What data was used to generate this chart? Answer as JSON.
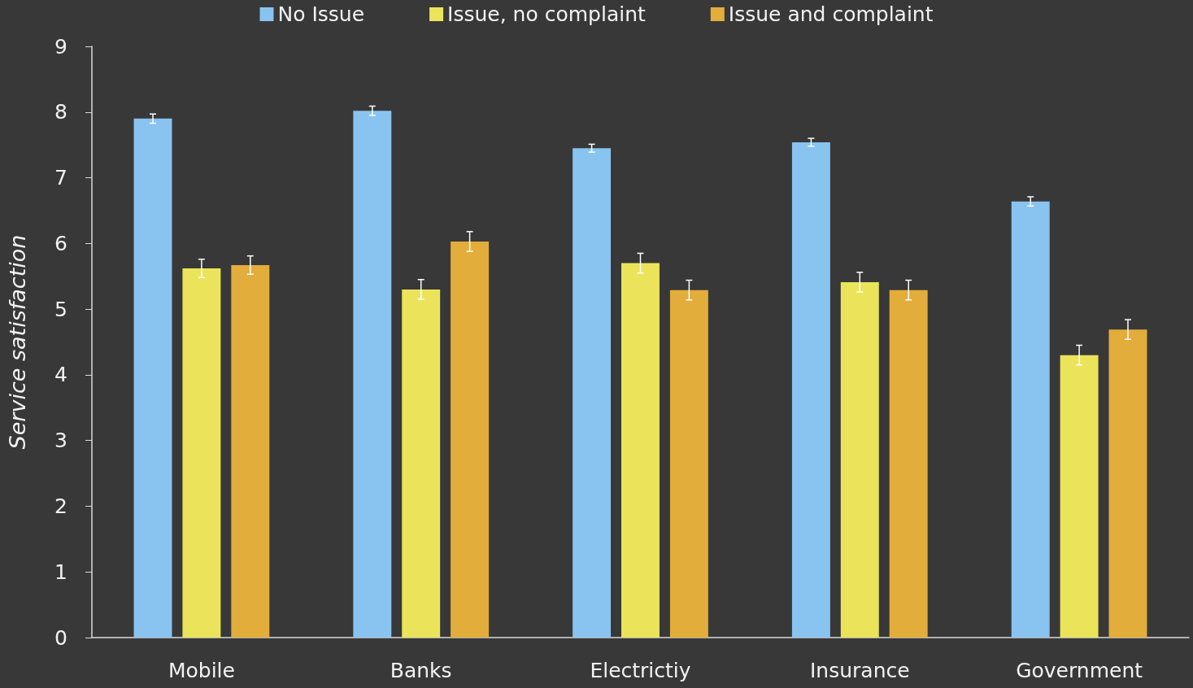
{
  "chart_data": {
    "type": "bar",
    "ylabel": "Service satisfaction",
    "categories": [
      "Mobile",
      "Banks",
      "Electrictiy",
      "Insurance",
      "Government"
    ],
    "series": [
      {
        "name": "No Issue",
        "color": "#89c4f0",
        "values": [
          7.9,
          8.02,
          7.45,
          7.54,
          6.64
        ],
        "errors": [
          0.07,
          0.07,
          0.06,
          0.06,
          0.07
        ]
      },
      {
        "name": "Issue, no complaint",
        "color": "#ebe45a",
        "values": [
          5.62,
          5.3,
          5.7,
          5.41,
          4.3
        ],
        "errors": [
          0.14,
          0.15,
          0.15,
          0.15,
          0.15
        ]
      },
      {
        "name": "Issue and complaint",
        "color": "#e2ad3b",
        "values": [
          5.67,
          6.03,
          5.29,
          5.29,
          4.69
        ],
        "errors": [
          0.14,
          0.15,
          0.15,
          0.15,
          0.15
        ]
      }
    ],
    "ylim": [
      0,
      9
    ],
    "yticks": [
      0,
      1,
      2,
      3,
      4,
      5,
      6,
      7,
      8,
      9
    ],
    "grid": false,
    "legend": "top"
  }
}
